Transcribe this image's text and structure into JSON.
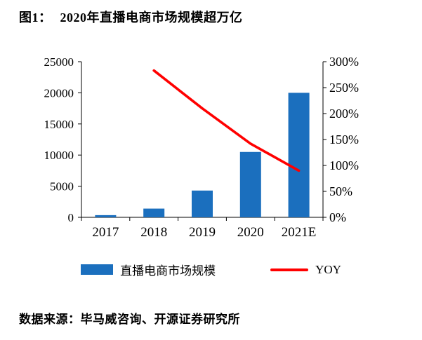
{
  "title": {
    "prefix": "图1：",
    "text": "2020年直播电商市场规模超万亿"
  },
  "source": "数据来源：毕马威咨询、开源证券研究所",
  "colors": {
    "bar_blue": "#1B6FBE",
    "line_red": "#FF0000",
    "axis_black": "#000000"
  },
  "chart_data": {
    "type": "bar",
    "subtype": "bar + line combo, dual axis",
    "categories": [
      "2017",
      "2018",
      "2019",
      "2020",
      "2021E"
    ],
    "series": [
      {
        "name": "直播电商市场规模",
        "type": "bar",
        "axis": "left",
        "color": "#1B6FBE",
        "values": [
          350,
          1400,
          4300,
          10500,
          20000
        ]
      },
      {
        "name": "YOY",
        "type": "line",
        "axis": "right",
        "color": "#FF0000",
        "unit": "%",
        "values": [
          null,
          283,
          210,
          142,
          90
        ]
      }
    ],
    "left_axis": {
      "min": 0,
      "max": 25000,
      "step": 5000,
      "ticks": [
        "0",
        "5000",
        "10000",
        "15000",
        "20000",
        "25000"
      ]
    },
    "right_axis": {
      "min": 0,
      "max": 300,
      "step": 50,
      "ticks": [
        "0%",
        "50%",
        "100%",
        "150%",
        "200%",
        "250%",
        "300%"
      ]
    },
    "grid": "off",
    "legend_position": "bottom-center",
    "legend": [
      {
        "label": "直播电商市场规模",
        "color": "#1B6FBE",
        "type": "bar"
      },
      {
        "label": "YOY",
        "color": "#FF0000",
        "type": "line"
      }
    ]
  }
}
